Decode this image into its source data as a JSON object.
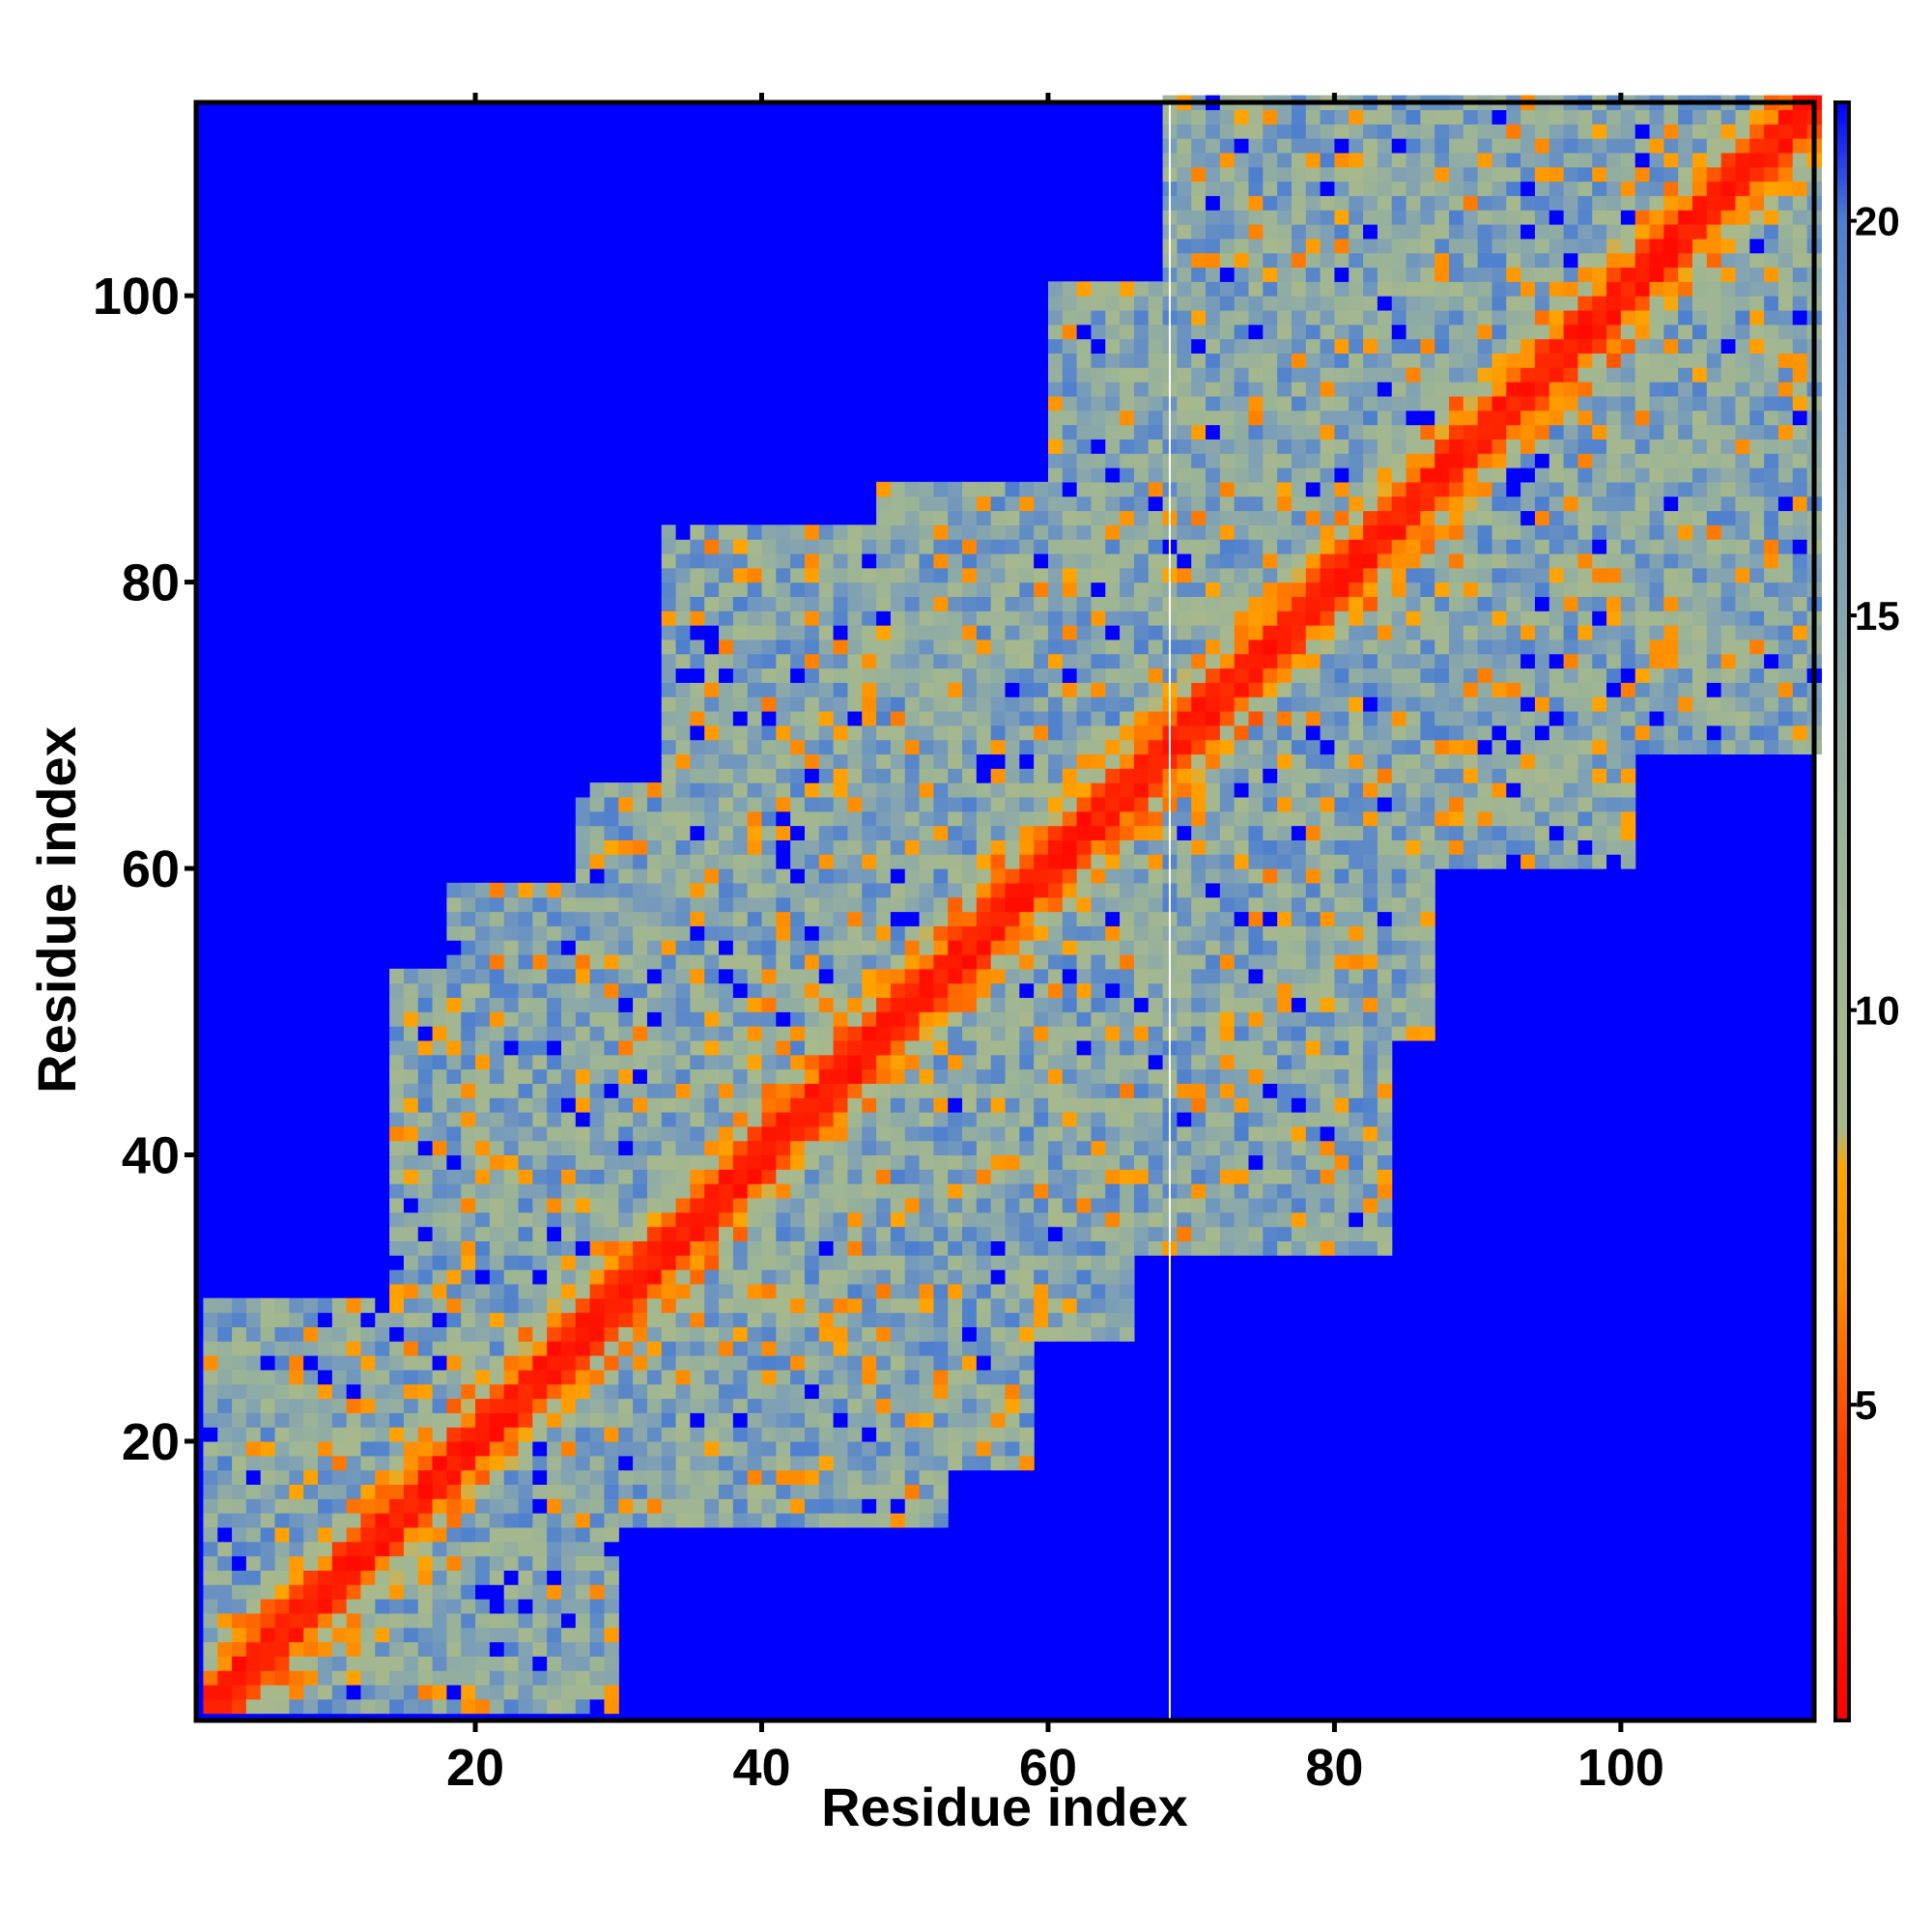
{
  "chart_data": {
    "type": "heatmap",
    "title": "",
    "xlabel": "Residue index",
    "ylabel": "Residue index",
    "n_residues": 113,
    "xlim": [
      1,
      113
    ],
    "ylim": [
      1,
      113
    ],
    "x_ticks": [
      20,
      40,
      60,
      80,
      100
    ],
    "y_ticks": [
      20,
      40,
      60,
      80,
      100
    ],
    "colorbar": {
      "range": [
        1,
        21.5
      ],
      "ticks": [
        5,
        10,
        15,
        20
      ],
      "stops": [
        {
          "value": 1.0,
          "color": "#ff0000"
        },
        {
          "value": 4.5,
          "color": "#ff4000"
        },
        {
          "value": 6.5,
          "color": "#ff8c00"
        },
        {
          "value": 8.0,
          "color": "#ffa500"
        },
        {
          "value": 8.5,
          "color": "#a9b98a"
        },
        {
          "value": 12.0,
          "color": "#9cb496"
        },
        {
          "value": 16.0,
          "color": "#7ea0b6"
        },
        {
          "value": 20.0,
          "color": "#4d7fcf"
        },
        {
          "value": 21.5,
          "color": "#0000ff"
        }
      ]
    },
    "background_color": "#0000ff",
    "contact_regions": [
      {
        "x": [
          1,
          29
        ],
        "y": [
          1,
          29
        ]
      },
      {
        "x": [
          14,
          58
        ],
        "y": [
          18,
          52
        ]
      },
      {
        "x": [
          18,
          57
        ],
        "y": [
          26,
          52
        ]
      },
      {
        "x": [
          27,
          59
        ],
        "y": [
          34,
          65
        ]
      },
      {
        "x": [
          33,
          70
        ],
        "y": [
          43,
          83
        ]
      },
      {
        "x": [
          48,
          75
        ],
        "y": [
          58,
          86
        ]
      },
      {
        "x": [
          52,
          78
        ],
        "y": [
          44,
          72
        ]
      },
      {
        "x": [
          60,
          90
        ],
        "y": [
          70,
          100
        ]
      },
      {
        "x": [
          67,
          86
        ],
        "y": [
          54,
          76
        ]
      },
      {
        "x": [
          68,
          113
        ],
        "y": [
          80,
          113
        ]
      },
      {
        "x": [
          86,
          113
        ],
        "y": [
          69,
          97
        ]
      }
    ],
    "blank_column_x": 68
  }
}
